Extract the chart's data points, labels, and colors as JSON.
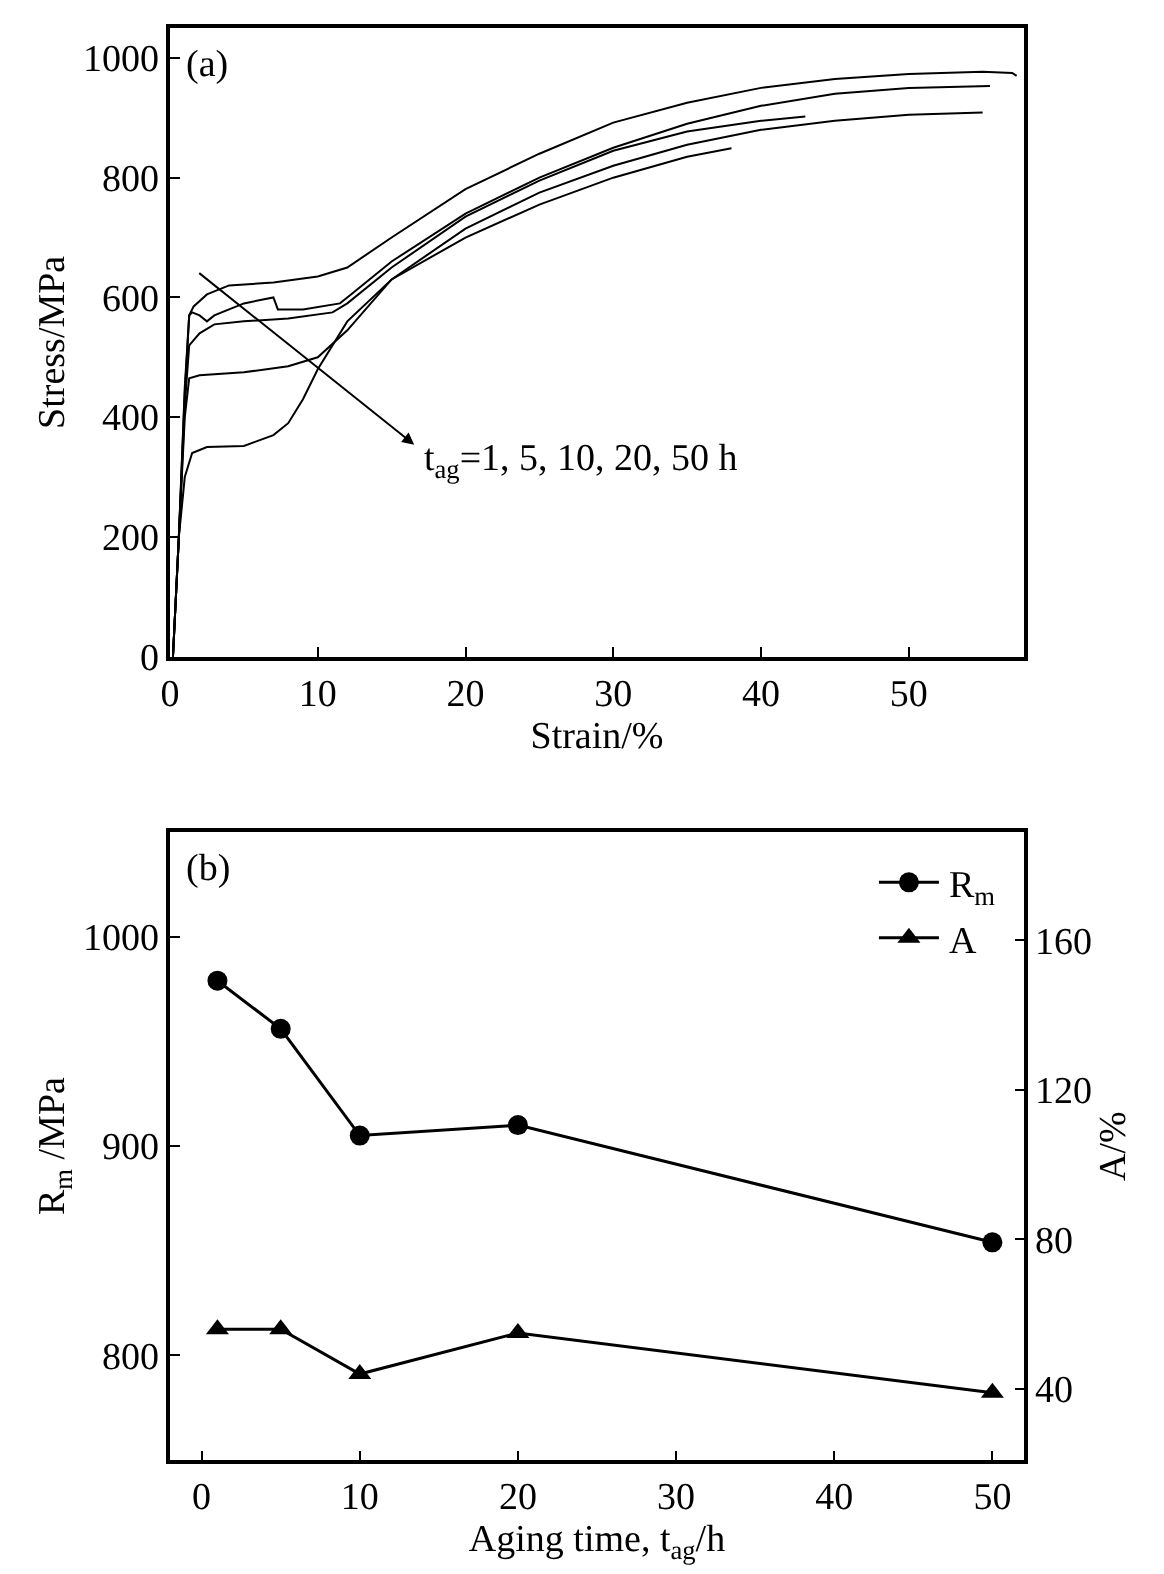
{
  "chart_data": [
    {
      "type": "line",
      "xlabel": "Strain/%",
      "ylabel": "Stress/MPa",
      "xlim": [
        0,
        57.8
      ],
      "ylim": [
        0,
        1050
      ],
      "xticks": [
        0,
        10,
        20,
        30,
        40,
        50
      ],
      "yticks": [
        0,
        200,
        400,
        600,
        800,
        1000
      ],
      "legend": false,
      "marker": "none",
      "line_style": "solid",
      "annotations": [
        "(a)",
        "t$_{ag}$=1, 5, 10, 20, 50 h"
      ],
      "series": [
        {
          "color": "#000000",
          "x": [
            0.2,
            0.6,
            1.0,
            1.3,
            1.6,
            2.5,
            4,
            7,
            10,
            12,
            15,
            20,
            25,
            30,
            35,
            40,
            45,
            50,
            55,
            57,
            57.3
          ],
          "values": [
            0,
            200,
            450,
            570,
            585,
            605,
            620,
            625,
            635,
            650,
            700,
            781,
            840,
            892,
            925,
            950,
            965,
            973,
            977,
            975,
            970
          ]
        },
        {
          "color": "#000000",
          "x": [
            0.2,
            0.6,
            1.0,
            1.3,
            1.5,
            2.0,
            2.5,
            3,
            5,
            7,
            7.3,
            9,
            11.5,
            12,
            15,
            20,
            25,
            30,
            35,
            40,
            45,
            50,
            55.5
          ],
          "values": [
            0,
            200,
            440,
            570,
            575,
            570,
            560,
            570,
            590,
            600,
            580,
            580,
            590,
            600,
            660,
            740,
            800,
            850,
            890,
            920,
            940,
            950,
            953
          ]
        },
        {
          "color": "#000000",
          "x": [
            0.2,
            0.6,
            1.0,
            1.3,
            2,
            3,
            5,
            8,
            11,
            12,
            15,
            20,
            25,
            30,
            35,
            40,
            43
          ],
          "values": [
            0,
            200,
            420,
            520,
            540,
            555,
            560,
            565,
            575,
            590,
            650,
            735,
            795,
            845,
            877,
            895,
            902
          ]
        },
        {
          "color": "#000000",
          "x": [
            0.2,
            0.6,
            1.0,
            1.3,
            2,
            5,
            8,
            10,
            12,
            15,
            20,
            25,
            30,
            35,
            40,
            45,
            50,
            55
          ],
          "values": [
            0,
            200,
            400,
            465,
            470,
            475,
            485,
            500,
            545,
            630,
            715,
            775,
            820,
            855,
            880,
            895,
            905,
            909
          ]
        },
        {
          "color": "#000000",
          "x": [
            0.2,
            0.6,
            1.0,
            1.5,
            2.5,
            5,
            7,
            8,
            9,
            10,
            12,
            15,
            20,
            25,
            30,
            35,
            38
          ],
          "values": [
            0,
            200,
            300,
            340,
            350,
            352,
            370,
            390,
            430,
            480,
            560,
            630,
            700,
            755,
            800,
            835,
            849
          ]
        }
      ]
    },
    {
      "type": "line",
      "xlabel": "Aging time, t$_{ag}$/h",
      "ylabel": "R$_{m}$ /MPa",
      "y2label": "A/%",
      "xlim": [
        -2,
        52
      ],
      "ylim": [
        750,
        1050
      ],
      "y2lim": [
        21,
        189
      ],
      "xticks": [
        0,
        10,
        20,
        30,
        40,
        50
      ],
      "yticks": [
        800,
        900,
        1000
      ],
      "y2ticks": [
        40,
        80,
        120,
        160
      ],
      "legend": "top right",
      "line_style": "solid",
      "annotations": [
        "(b)"
      ],
      "series": [
        {
          "name": "R$_{m}$",
          "color": "#000000",
          "marker": "circle",
          "x": [
            1,
            5,
            10,
            20,
            50
          ],
          "values": [
            979,
            956,
            905,
            910,
            854
          ]
        },
        {
          "name": "A",
          "color": "#000000",
          "marker": "triangle",
          "axis": "y2",
          "x": [
            1,
            5,
            10,
            20,
            50
          ],
          "values": [
            56,
            56,
            44,
            55,
            39
          ]
        }
      ]
    }
  ]
}
